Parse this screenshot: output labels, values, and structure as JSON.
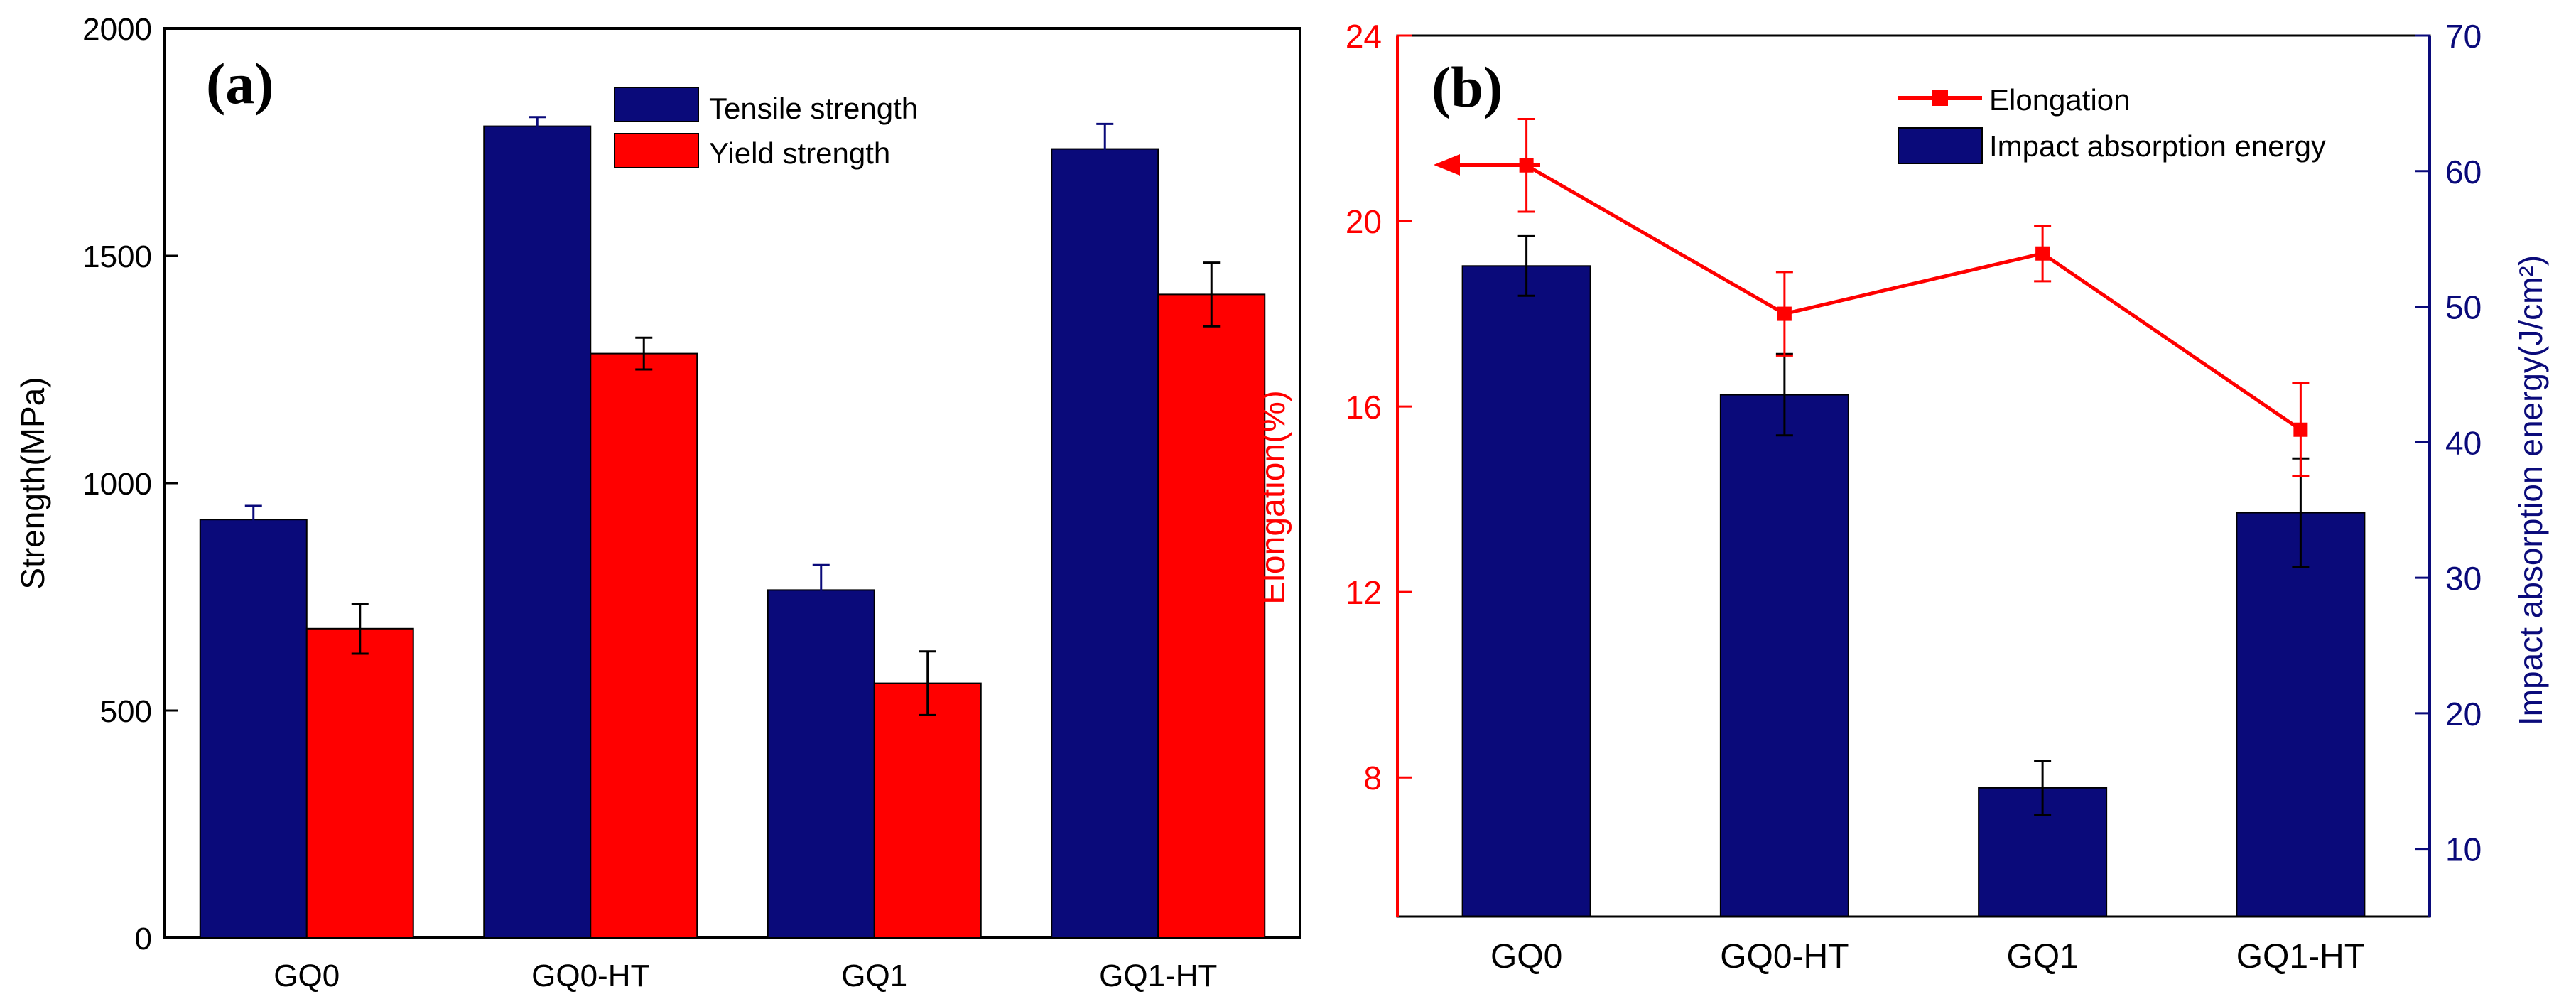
{
  "chart_data": [
    {
      "type": "bar",
      "panel_label": "(a)",
      "categories": [
        "GQ0",
        "GQ0-HT",
        "GQ1",
        "GQ1-HT"
      ],
      "series": [
        {
          "name": "Tensile strength",
          "color": "#0a0a7a",
          "values": [
            920,
            1785,
            765,
            1735
          ],
          "errors": [
            30,
            20,
            55,
            55
          ]
        },
        {
          "name": "Yield strength",
          "color": "#ff0000",
          "values": [
            680,
            1285,
            560,
            1415
          ],
          "errors": [
            55,
            35,
            70,
            70
          ]
        }
      ],
      "ylabel": "Strength(MPa)",
      "xlabel": "",
      "ylim": [
        0,
        2000
      ],
      "yticks": [
        "0",
        "500",
        "1000",
        "1500",
        "2000"
      ],
      "legend_position": "top-right"
    },
    {
      "type": "bar+line",
      "panel_label": "(b)",
      "categories": [
        "GQ0",
        "GQ0-HT",
        "GQ1",
        "GQ1-HT"
      ],
      "line_series": {
        "name": "Elongation",
        "color": "#ff0000",
        "axis": "left",
        "values": [
          21.2,
          18.0,
          19.3,
          15.5
        ],
        "errors": [
          1.0,
          0.9,
          0.6,
          1.0
        ]
      },
      "bar_series": {
        "name": "Impact absorption energy",
        "color": "#0a0a7a",
        "axis": "right",
        "values": [
          53,
          43.5,
          14.5,
          34.8
        ],
        "errors": [
          2.2,
          3.0,
          2.0,
          4.0
        ]
      },
      "ylabel_left": "Elongation(%)",
      "ylabel_right": "Impact absorption energy(J/cm²)",
      "ylim_left": [
        5,
        24
      ],
      "ylim_right": [
        5,
        70
      ],
      "yticks_left": [
        "8",
        "12",
        "16",
        "20",
        "24"
      ],
      "yticks_right": [
        "10",
        "20",
        "30",
        "40",
        "50",
        "60",
        "70"
      ],
      "annotation": "arrow pointing from GQ0 elongation point to left axis",
      "legend_position": "top-right"
    }
  ]
}
